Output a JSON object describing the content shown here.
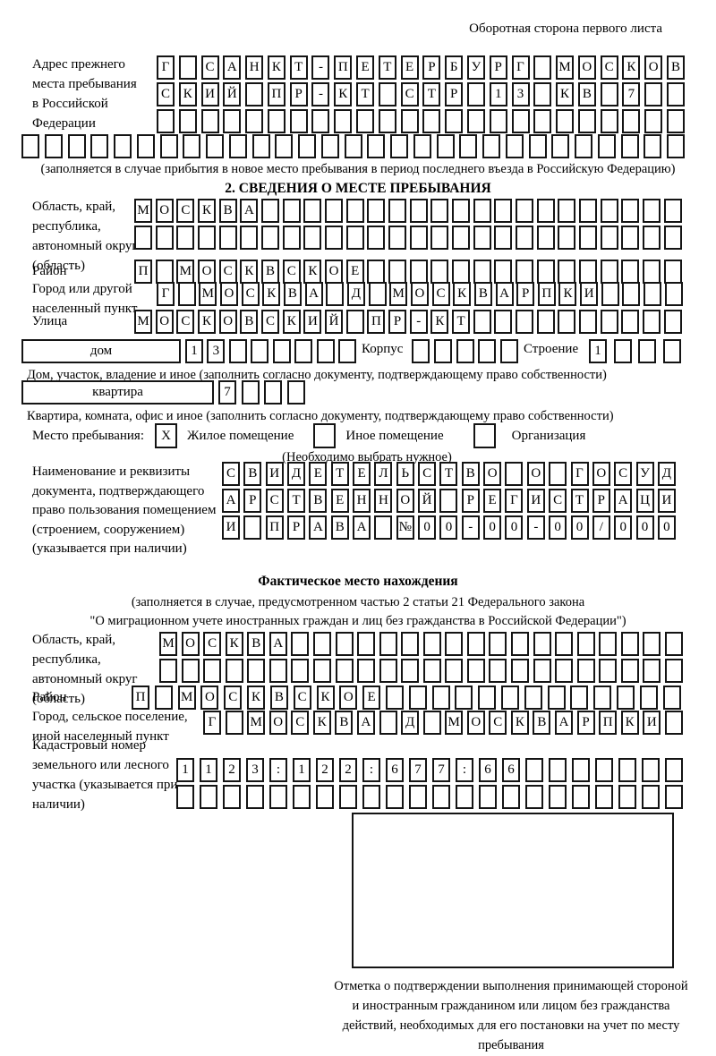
{
  "page_header": "Оборотная сторона первого листа",
  "prev_address": {
    "label": "Адрес прежнего места пребывания в Российской Федерации",
    "rows": [
      [
        "Г",
        "",
        "С",
        "А",
        "Н",
        "К",
        "Т",
        "-",
        "П",
        "Е",
        "Т",
        "Е",
        "Р",
        "Б",
        "У",
        "Р",
        "Г",
        "",
        "М",
        "О",
        "С",
        "К",
        "О",
        "В"
      ],
      [
        "С",
        "К",
        "И",
        "Й",
        "",
        "П",
        "Р",
        "-",
        "К",
        "Т",
        "",
        "С",
        "Т",
        "Р",
        "",
        "1",
        "3",
        "",
        "К",
        "В",
        "",
        "7",
        "",
        ""
      ],
      [
        "",
        "",
        "",
        "",
        "",
        "",
        "",
        "",
        "",
        "",
        "",
        "",
        "",
        "",
        "",
        "",
        "",
        "",
        "",
        "",
        "",
        "",
        "",
        ""
      ],
      [
        "",
        "",
        "",
        "",
        "",
        "",
        "",
        "",
        "",
        "",
        "",
        "",
        "",
        "",
        "",
        "",
        "",
        "",
        "",
        "",
        "",
        "",
        "",
        "",
        "",
        "",
        "",
        "",
        ""
      ]
    ],
    "note": "(заполняется в случае прибытия в новое место пребывания в период последнего въезда в Российскую Федерацию)"
  },
  "section2": {
    "title": "2. СВЕДЕНИЯ О МЕСТЕ ПРЕБЫВАНИЯ",
    "region": {
      "label": "Область, край, республика, автономный округ (область)",
      "rows": [
        [
          "М",
          "О",
          "С",
          "К",
          "В",
          "А",
          "",
          "",
          "",
          "",
          "",
          "",
          "",
          "",
          "",
          "",
          "",
          "",
          "",
          "",
          "",
          "",
          "",
          "",
          "",
          ""
        ],
        [
          "",
          "",
          "",
          "",
          "",
          "",
          "",
          "",
          "",
          "",
          "",
          "",
          "",
          "",
          "",
          "",
          "",
          "",
          "",
          "",
          "",
          "",
          "",
          "",
          "",
          ""
        ]
      ]
    },
    "district": {
      "label": "Район",
      "cells": [
        "П",
        "",
        "М",
        "О",
        "С",
        "К",
        "В",
        "С",
        "К",
        "О",
        "Е",
        "",
        "",
        "",
        "",
        "",
        "",
        "",
        "",
        "",
        "",
        "",
        "",
        "",
        "",
        ""
      ]
    },
    "city": {
      "label": "Город или другой населенный пункт",
      "cells": [
        "Г",
        "",
        "М",
        "О",
        "С",
        "К",
        "В",
        "А",
        "",
        "Д",
        "",
        "М",
        "О",
        "С",
        "К",
        "В",
        "А",
        "Р",
        "П",
        "К",
        "И",
        "",
        "",
        "",
        ""
      ]
    },
    "street": {
      "label": "Улица",
      "cells": [
        "М",
        "О",
        "С",
        "К",
        "О",
        "В",
        "С",
        "К",
        "И",
        "Й",
        "",
        "П",
        "Р",
        "-",
        "К",
        "Т",
        "",
        "",
        "",
        "",
        "",
        "",
        "",
        "",
        "",
        ""
      ]
    },
    "house": {
      "box_label": "дом",
      "cells": [
        "1",
        "3",
        "",
        "",
        "",
        "",
        "",
        ""
      ],
      "korpus_label": "Корпус",
      "korpus_cells": [
        "",
        "",
        "",
        "",
        ""
      ],
      "stroenie_label": "Строение",
      "stroenie_cells": [
        "1",
        "",
        "",
        ""
      ],
      "note": "Дом, участок, владение и иное (заполнить согласно документу, подтверждающему право собственности)"
    },
    "apartment": {
      "box_label": "квартира",
      "cells": [
        "7",
        "",
        "",
        ""
      ],
      "note": "Квартира, комната, офис и иное (заполнить согласно документу, подтверждающему право собственности)"
    },
    "stay_type": {
      "label": "Место пребывания:",
      "options": [
        {
          "label": "Жилое помещение",
          "mark": "X"
        },
        {
          "label": "Иное помещение",
          "mark": ""
        },
        {
          "label": "Организация",
          "mark": ""
        }
      ],
      "note": "(Необходимо выбрать нужное)"
    },
    "doc": {
      "label": "Наименование и реквизиты документа, подтверждающего право пользования помещением (строением, сооружением) (указывается при наличии)",
      "rows": [
        [
          "С",
          "В",
          "И",
          "Д",
          "Е",
          "Т",
          "Е",
          "Л",
          "Ь",
          "С",
          "Т",
          "В",
          "О",
          "",
          "О",
          "",
          "Г",
          "О",
          "С",
          "У",
          "Д"
        ],
        [
          "А",
          "Р",
          "С",
          "Т",
          "В",
          "Е",
          "Н",
          "Н",
          "О",
          "Й",
          "",
          "Р",
          "Е",
          "Г",
          "И",
          "С",
          "Т",
          "Р",
          "А",
          "Ц",
          "И"
        ],
        [
          "И",
          "",
          "П",
          "Р",
          "А",
          "В",
          "А",
          "",
          "№",
          "0",
          "0",
          "-",
          "0",
          "0",
          "-",
          "0",
          "0",
          "/",
          "0",
          "0",
          "0"
        ]
      ]
    }
  },
  "actual_location": {
    "title": "Фактическое место нахождения",
    "note1": "(заполняется в случае, предусмотренном частью 2 статьи 21 Федерального закона",
    "note2": "\"О миграционном учете иностранных граждан и лиц без гражданства в Российской Федерации\")",
    "region": {
      "label": "Область, край, республика, автономный округ (область)",
      "rows": [
        [
          "М",
          "О",
          "С",
          "К",
          "В",
          "А",
          "",
          "",
          "",
          "",
          "",
          "",
          "",
          "",
          "",
          "",
          "",
          "",
          "",
          "",
          "",
          "",
          "",
          ""
        ],
        [
          "",
          "",
          "",
          "",
          "",
          "",
          "",
          "",
          "",
          "",
          "",
          "",
          "",
          "",
          "",
          "",
          "",
          "",
          "",
          "",
          "",
          "",
          "",
          ""
        ]
      ]
    },
    "district": {
      "label": "Район",
      "cells": [
        "П",
        "",
        "М",
        "О",
        "С",
        "К",
        "В",
        "С",
        "К",
        "О",
        "Е",
        "",
        "",
        "",
        "",
        "",
        "",
        "",
        "",
        "",
        "",
        "",
        "",
        ""
      ]
    },
    "city": {
      "label": "Город, сельское поселение, иной населенный пункт",
      "cells": [
        "Г",
        "",
        "М",
        "О",
        "С",
        "К",
        "В",
        "А",
        "",
        "Д",
        "",
        "М",
        "О",
        "С",
        "К",
        "В",
        "А",
        "Р",
        "П",
        "К",
        "И",
        ""
      ]
    },
    "cadastre": {
      "label": "Кадастровый номер земельного или лесного участка (указывается при наличии)",
      "rows": [
        [
          "1",
          "1",
          "2",
          "3",
          ":",
          "1",
          "2",
          "2",
          ":",
          "6",
          "7",
          "7",
          ":",
          "6",
          "6",
          "",
          "",
          "",
          "",
          "",
          "",
          ""
        ],
        [
          "",
          "",
          "",
          "",
          "",
          "",
          "",
          "",
          "",
          "",
          "",
          "",
          "",
          "",
          "",
          "",
          "",
          "",
          "",
          "",
          "",
          ""
        ]
      ]
    },
    "stamp_note": "Отметка о подтверждении выполнения принимающей стороной и иностранным гражданином или лицом без гражданства действий, необходимых для его постановки на учет по месту пребывания"
  }
}
